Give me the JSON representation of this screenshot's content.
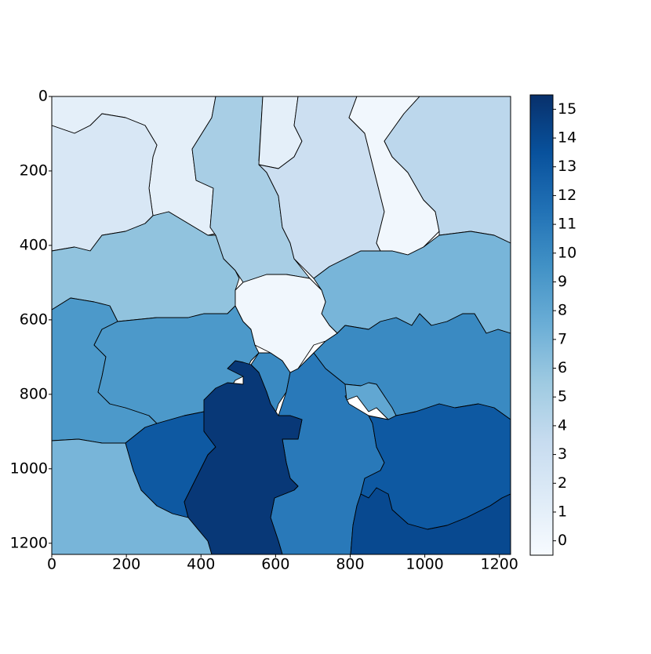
{
  "chart_data": {
    "type": "image",
    "colormap": "Blues",
    "values": [
      1,
      2,
      5,
      1,
      3,
      0,
      4,
      6,
      0,
      7,
      9,
      9,
      15,
      10,
      11,
      10,
      8,
      13,
      14,
      7,
      13
    ],
    "xlim": [
      0,
      1230
    ],
    "xticks": [
      0,
      200,
      400,
      600,
      800,
      1000,
      1200
    ],
    "ylim": [
      1230,
      0
    ],
    "yticks": [
      0,
      200,
      400,
      600,
      800,
      1000,
      1200
    ],
    "colorbar": {
      "clim": [
        -0.5,
        15.5
      ],
      "ticks": [
        0,
        1,
        2,
        3,
        4,
        5,
        6,
        7,
        8,
        9,
        10,
        11,
        12,
        13,
        14,
        15
      ]
    }
  }
}
